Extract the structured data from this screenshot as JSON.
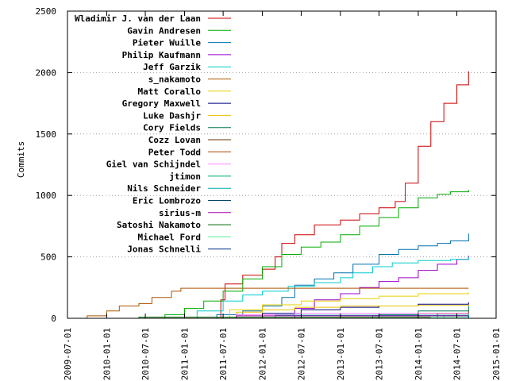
{
  "chart_data": {
    "type": "line",
    "ylabel": "Commits",
    "xlabel": "",
    "ylim": [
      0,
      2500
    ],
    "yticks": [
      "0",
      "500",
      "1000",
      "1500",
      "2000",
      "2500"
    ],
    "ytick_values": [
      0,
      500,
      1000,
      1500,
      2000,
      2500
    ],
    "xlim": [
      "2009-07-01",
      "2015-01-01"
    ],
    "xticks": [
      "2009-07-01",
      "2010-01-01",
      "2010-07-01",
      "2011-01-01",
      "2011-07-01",
      "2012-01-01",
      "2012-07-01",
      "2013-01-01",
      "2013-07-01",
      "2014-01-01",
      "2014-07-01",
      "2015-01-01"
    ],
    "grid": "horizontal, at y tick values 500, 1000, 1500, 2000",
    "legend_position": "top-left",
    "series": [
      {
        "name": "Wladimir J. van der Laan",
        "color": "#cc0000",
        "points": [
          [
            "2011-04-01",
            0
          ],
          [
            "2011-06-20",
            150
          ],
          [
            "2011-07-10",
            280
          ],
          [
            "2011-10-01",
            350
          ],
          [
            "2012-01-01",
            400
          ],
          [
            "2012-03-01",
            500
          ],
          [
            "2012-04-01",
            610
          ],
          [
            "2012-06-01",
            680
          ],
          [
            "2012-09-01",
            760
          ],
          [
            "2013-01-01",
            800
          ],
          [
            "2013-04-01",
            850
          ],
          [
            "2013-07-01",
            900
          ],
          [
            "2013-09-15",
            950
          ],
          [
            "2013-11-01",
            1100
          ],
          [
            "2014-01-01",
            1400
          ],
          [
            "2014-03-01",
            1600
          ],
          [
            "2014-05-01",
            1750
          ],
          [
            "2014-07-01",
            1900
          ],
          [
            "2014-08-25",
            2010
          ]
        ]
      },
      {
        "name": "Gavin Andresen",
        "color": "#00aa00",
        "points": [
          [
            "2010-07-01",
            0
          ],
          [
            "2010-10-01",
            30
          ],
          [
            "2011-01-01",
            80
          ],
          [
            "2011-04-01",
            140
          ],
          [
            "2011-07-01",
            220
          ],
          [
            "2011-10-01",
            320
          ],
          [
            "2012-01-01",
            420
          ],
          [
            "2012-04-01",
            520
          ],
          [
            "2012-07-01",
            580
          ],
          [
            "2012-10-01",
            620
          ],
          [
            "2013-01-01",
            680
          ],
          [
            "2013-04-01",
            750
          ],
          [
            "2013-07-01",
            820
          ],
          [
            "2013-10-01",
            900
          ],
          [
            "2014-01-01",
            980
          ],
          [
            "2014-04-01",
            1010
          ],
          [
            "2014-06-01",
            1030
          ],
          [
            "2014-08-25",
            1045
          ]
        ]
      },
      {
        "name": "Pieter Wuille",
        "color": "#0070b0",
        "points": [
          [
            "2011-03-01",
            0
          ],
          [
            "2011-06-01",
            30
          ],
          [
            "2011-10-01",
            60
          ],
          [
            "2012-01-01",
            100
          ],
          [
            "2012-04-01",
            170
          ],
          [
            "2012-06-01",
            270
          ],
          [
            "2012-09-01",
            320
          ],
          [
            "2012-12-01",
            370
          ],
          [
            "2013-03-01",
            440
          ],
          [
            "2013-07-01",
            520
          ],
          [
            "2013-10-01",
            560
          ],
          [
            "2014-01-01",
            590
          ],
          [
            "2014-04-01",
            610
          ],
          [
            "2014-06-01",
            630
          ],
          [
            "2014-08-25",
            690
          ]
        ]
      },
      {
        "name": "Philip Kaufmann",
        "color": "#9900cc",
        "points": [
          [
            "2012-04-01",
            0
          ],
          [
            "2012-06-01",
            80
          ],
          [
            "2012-09-01",
            150
          ],
          [
            "2013-01-01",
            200
          ],
          [
            "2013-04-01",
            250
          ],
          [
            "2013-07-01",
            300
          ],
          [
            "2013-10-01",
            330
          ],
          [
            "2014-01-01",
            390
          ],
          [
            "2014-04-01",
            440
          ],
          [
            "2014-07-01",
            480
          ],
          [
            "2014-08-25",
            510
          ]
        ]
      },
      {
        "name": "Jeff Garzik",
        "color": "#00cccc",
        "points": [
          [
            "2010-12-01",
            0
          ],
          [
            "2011-03-01",
            60
          ],
          [
            "2011-07-01",
            140
          ],
          [
            "2011-10-01",
            190
          ],
          [
            "2012-01-01",
            220
          ],
          [
            "2012-05-01",
            260
          ],
          [
            "2012-09-01",
            290
          ],
          [
            "2013-01-01",
            330
          ],
          [
            "2013-03-01",
            370
          ],
          [
            "2013-06-01",
            420
          ],
          [
            "2013-09-01",
            450
          ],
          [
            "2014-01-01",
            470
          ],
          [
            "2014-06-01",
            480
          ],
          [
            "2014-08-25",
            500
          ]
        ]
      },
      {
        "name": "s_nakamoto",
        "color": "#aa5500",
        "points": [
          [
            "2009-08-01",
            0
          ],
          [
            "2009-10-01",
            20
          ],
          [
            "2010-01-01",
            60
          ],
          [
            "2010-03-01",
            100
          ],
          [
            "2010-06-01",
            120
          ],
          [
            "2010-08-01",
            170
          ],
          [
            "2010-11-01",
            220
          ],
          [
            "2010-12-15",
            245
          ],
          [
            "2014-08-25",
            245
          ]
        ]
      },
      {
        "name": "Matt Corallo",
        "color": "#e6d200",
        "points": [
          [
            "2011-05-01",
            0
          ],
          [
            "2011-08-01",
            70
          ],
          [
            "2012-01-01",
            110
          ],
          [
            "2012-07-01",
            140
          ],
          [
            "2013-01-01",
            160
          ],
          [
            "2013-07-01",
            180
          ],
          [
            "2014-01-01",
            200
          ],
          [
            "2014-08-25",
            210
          ]
        ]
      },
      {
        "name": "Gregory Maxwell",
        "color": "#000080",
        "points": [
          [
            "2011-06-01",
            0
          ],
          [
            "2012-01-01",
            40
          ],
          [
            "2012-07-01",
            70
          ],
          [
            "2013-01-01",
            90
          ],
          [
            "2013-07-01",
            100
          ],
          [
            "2014-01-01",
            115
          ],
          [
            "2014-08-25",
            130
          ]
        ]
      },
      {
        "name": "Luke Dashjr",
        "color": "#e6c000",
        "points": [
          [
            "2011-04-01",
            0
          ],
          [
            "2011-09-01",
            50
          ],
          [
            "2012-01-01",
            70
          ],
          [
            "2012-06-01",
            90
          ],
          [
            "2013-01-01",
            100
          ],
          [
            "2014-01-01",
            105
          ],
          [
            "2014-08-25",
            110
          ]
        ]
      },
      {
        "name": "Cory Fields",
        "color": "#007755",
        "points": [
          [
            "2013-01-01",
            0
          ],
          [
            "2013-07-01",
            30
          ],
          [
            "2014-01-01",
            60
          ],
          [
            "2014-08-25",
            100
          ]
        ]
      },
      {
        "name": "Cozz Lovan",
        "color": "#663300",
        "points": [
          [
            "2013-10-01",
            0
          ],
          [
            "2014-04-01",
            40
          ],
          [
            "2014-08-25",
            60
          ]
        ]
      },
      {
        "name": "Peter Todd",
        "color": "#aa4400",
        "points": [
          [
            "2012-06-01",
            0
          ],
          [
            "2013-01-01",
            20
          ],
          [
            "2014-01-01",
            40
          ],
          [
            "2014-08-25",
            50
          ]
        ]
      },
      {
        "name": "Giel van Schijndel",
        "color": "#ff88ff",
        "points": [
          [
            "2011-06-01",
            0
          ],
          [
            "2011-09-01",
            30
          ],
          [
            "2012-06-01",
            40
          ],
          [
            "2014-08-25",
            45
          ]
        ]
      },
      {
        "name": "jtimon",
        "color": "#00aa77",
        "points": [
          [
            "2014-01-01",
            0
          ],
          [
            "2014-05-01",
            20
          ],
          [
            "2014-08-25",
            40
          ]
        ]
      },
      {
        "name": "Nils Schneider",
        "color": "#00aaaa",
        "points": [
          [
            "2012-01-01",
            0
          ],
          [
            "2012-03-01",
            25
          ],
          [
            "2014-08-25",
            30
          ]
        ]
      },
      {
        "name": "Eric Lombrozo",
        "color": "#004466",
        "points": [
          [
            "2012-06-01",
            0
          ],
          [
            "2013-06-01",
            20
          ],
          [
            "2014-08-25",
            30
          ]
        ]
      },
      {
        "name": "sirius-m",
        "color": "#aa00aa",
        "points": [
          [
            "2011-07-01",
            0
          ],
          [
            "2011-09-01",
            20
          ],
          [
            "2014-08-25",
            25
          ]
        ]
      },
      {
        "name": "Satoshi Nakamoto",
        "color": "#006600",
        "points": [
          [
            "2009-08-01",
            0
          ],
          [
            "2010-06-01",
            10
          ],
          [
            "2014-08-25",
            20
          ]
        ]
      },
      {
        "name": "Michael Ford",
        "color": "#55ee99",
        "points": [
          [
            "2013-06-01",
            0
          ],
          [
            "2014-03-01",
            10
          ],
          [
            "2014-08-25",
            30
          ]
        ]
      },
      {
        "name": "Jonas Schnelli",
        "color": "#003388",
        "points": [
          [
            "2014-03-01",
            0
          ],
          [
            "2014-08-25",
            20
          ]
        ]
      }
    ]
  }
}
